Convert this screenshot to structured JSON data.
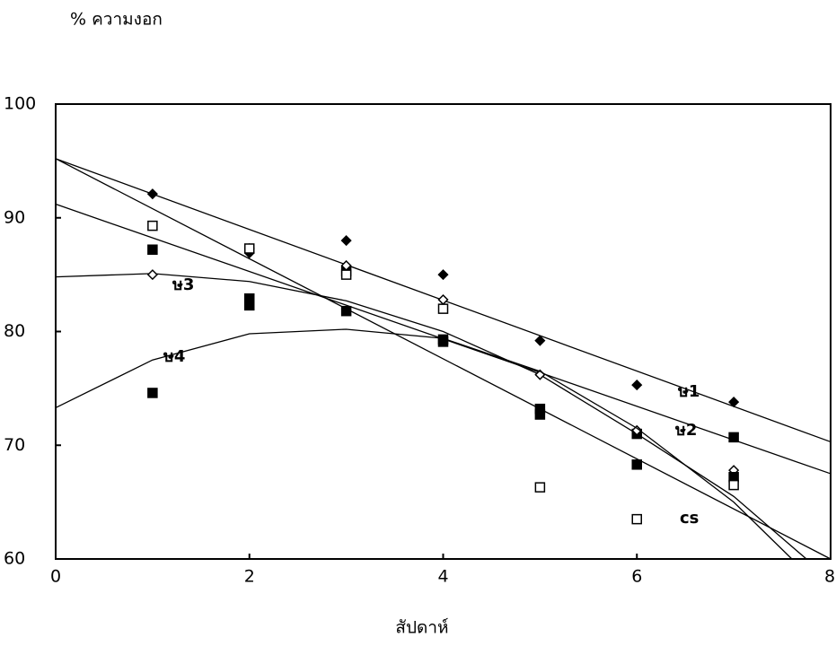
{
  "chart_data": {
    "type": "scatter",
    "y_label": "% ความงอก",
    "x_label": "สัปดาห์",
    "x": [
      1,
      2,
      3,
      4,
      5,
      6,
      7
    ],
    "xlim": [
      0,
      8
    ],
    "xticks": [
      0,
      2,
      4,
      6,
      8
    ],
    "ylim": [
      60,
      100
    ],
    "yticks": [
      60,
      70,
      80,
      90,
      100
    ],
    "series": [
      {
        "name": "ษ1",
        "color": "#000000",
        "marker": "diamond-filled",
        "values": [
          92.1,
          86.9,
          88.0,
          85.0,
          79.2,
          75.3,
          73.8
        ],
        "fit_x": [
          0,
          8
        ],
        "fit_y": [
          95.2,
          70.3
        ]
      },
      {
        "name": "ษ2",
        "color": "#000000",
        "marker": "square-filled",
        "values": [
          87.2,
          82.9,
          85.3,
          79.3,
          73.2,
          71.0,
          70.7
        ],
        "fit_x": [
          0,
          8
        ],
        "fit_y": [
          91.2,
          67.5
        ]
      },
      {
        "name": "ษ3",
        "color": "#000000",
        "marker": "diamond-open",
        "values": [
          85.0,
          87.3,
          85.8,
          82.8,
          76.2,
          71.3,
          67.8
        ],
        "fit_x": [
          0,
          1,
          2,
          3,
          4,
          5,
          6,
          7,
          7.75
        ],
        "fit_y": [
          84.8,
          85.1,
          84.4,
          82.7,
          80.0,
          76.2,
          71.0,
          65.5,
          60
        ]
      },
      {
        "name": "ษ4",
        "color": "#000000",
        "marker": "square-dark",
        "values": [
          74.6,
          82.3,
          81.8,
          79.1,
          72.7,
          68.3,
          67.2
        ],
        "fit_x": [
          0,
          1,
          2,
          3,
          4,
          5,
          6,
          7,
          7.6
        ],
        "fit_y": [
          73.3,
          77.5,
          79.8,
          80.2,
          79.4,
          76.5,
          71.5,
          65.0,
          60
        ]
      },
      {
        "name": "cs",
        "color": "#000000",
        "marker": "square-open",
        "values": [
          89.3,
          87.3,
          85.0,
          82.0,
          66.3,
          63.5,
          66.5
        ],
        "fit_x": [
          0,
          8
        ],
        "fit_y": [
          95.2,
          60
        ]
      }
    ]
  }
}
